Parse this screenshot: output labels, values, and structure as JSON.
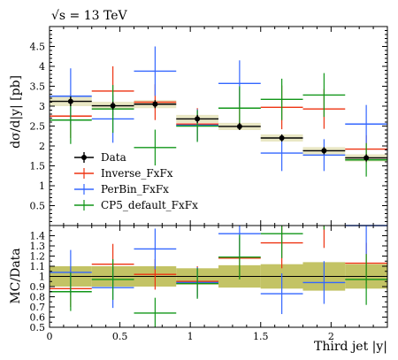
{
  "chart_data": {
    "type": "scatter",
    "energy_label": "√s = 13 TeV",
    "main_plot": {
      "ylabel": "dσ/d|y| [pb]",
      "ylim": [
        0,
        5
      ],
      "yticks": [
        0.5,
        1,
        1.5,
        2,
        2.5,
        3,
        3.5,
        4,
        4.5
      ],
      "ytick_labels": [
        "0.5",
        "1",
        "1.5",
        "2",
        "2.5",
        "3",
        "3.5",
        "4",
        "4.5"
      ],
      "series": [
        {
          "name": "Data",
          "color": "#000000",
          "style": "points",
          "bins": [
            [
              0,
              0.3
            ],
            [
              0.3,
              0.6
            ],
            [
              0.6,
              0.9
            ],
            [
              0.9,
              1.2
            ],
            [
              1.2,
              1.5
            ],
            [
              1.5,
              1.8
            ],
            [
              1.8,
              2.1
            ],
            [
              2.1,
              2.4
            ]
          ],
          "x": [
            0.15,
            0.45,
            0.75,
            1.05,
            1.35,
            1.65,
            1.95,
            2.25
          ],
          "y": [
            3.12,
            3.01,
            3.05,
            2.68,
            2.49,
            2.2,
            1.88,
            1.7
          ],
          "yerr": [
            0.12,
            0.1,
            0.1,
            0.1,
            0.09,
            0.09,
            0.09,
            0.09
          ]
        },
        {
          "name": "Inverse_FxFx",
          "color": "#ee3311",
          "style": "steps",
          "y": [
            2.75,
            3.38,
            3.1,
            2.55,
            2.95,
            2.97,
            2.93,
            1.92
          ],
          "yerr": [
            0.55,
            0.62,
            0.45,
            0.4,
            0.5,
            0.55,
            0.5,
            0.35
          ]
        },
        {
          "name": "PerBin_FxFx",
          "color": "#3366ff",
          "style": "steps",
          "y": [
            3.25,
            2.68,
            3.88,
            2.52,
            3.57,
            1.82,
            1.77,
            2.55
          ],
          "yerr": [
            0.7,
            0.6,
            0.62,
            0.4,
            0.58,
            0.45,
            0.4,
            0.48
          ]
        },
        {
          "name": "CP5_default_FxFx",
          "color": "#109618",
          "style": "steps",
          "y": [
            2.65,
            2.93,
            1.96,
            2.5,
            2.95,
            3.17,
            3.28,
            1.65
          ],
          "yerr": [
            0.6,
            0.6,
            0.45,
            0.4,
            0.55,
            0.52,
            0.55,
            0.42
          ]
        }
      ]
    },
    "ratio_plot": {
      "ylabel": "MC/Data",
      "xlabel": "Third jet |y|",
      "ylim": [
        0.5,
        1.5
      ],
      "yticks": [
        0.5,
        0.6,
        0.7,
        0.8,
        0.9,
        1,
        1.1,
        1.2,
        1.3,
        1.4
      ],
      "ytick_labels": [
        "0.5",
        "0.6",
        "0.7",
        "0.8",
        "0.9",
        "1",
        "1.1",
        "1.2",
        "1.3",
        "1.4"
      ],
      "xlim": [
        0,
        2.4
      ],
      "xticks": [
        0,
        0.5,
        1,
        1.5,
        2
      ],
      "xtick_labels": [
        "0",
        "0.5",
        "1",
        "1.5",
        "2"
      ],
      "data_band": [
        {
          "lo": 0.9,
          "hi": 1.1
        },
        {
          "lo": 0.9,
          "hi": 1.1
        },
        {
          "lo": 0.9,
          "hi": 1.1
        },
        {
          "lo": 0.92,
          "hi": 1.08
        },
        {
          "lo": 0.89,
          "hi": 1.11
        },
        {
          "lo": 0.88,
          "hi": 1.12
        },
        {
          "lo": 0.86,
          "hi": 1.14
        },
        {
          "lo": 0.88,
          "hi": 1.12
        }
      ],
      "series": [
        {
          "name": "Inverse_FxFx",
          "color": "#ee3311",
          "y": [
            0.88,
            1.12,
            1.02,
            0.95,
            1.18,
            1.33,
            1.55,
            1.13
          ],
          "yerr": [
            0.18,
            0.2,
            0.15,
            0.15,
            0.2,
            0.25,
            0.27,
            0.2
          ]
        },
        {
          "name": "PerBin_FxFx",
          "color": "#3366ff",
          "y": [
            1.04,
            0.89,
            1.27,
            0.94,
            1.42,
            0.83,
            0.94,
            1.5
          ],
          "yerr": [
            0.22,
            0.2,
            0.2,
            0.15,
            0.23,
            0.2,
            0.21,
            0.28
          ]
        },
        {
          "name": "CP5_default_FxFx",
          "color": "#109618",
          "y": [
            0.85,
            0.97,
            0.64,
            0.93,
            1.19,
            1.42,
            1.75,
            0.97
          ],
          "yerr": [
            0.19,
            0.2,
            0.15,
            0.15,
            0.22,
            0.24,
            0.29,
            0.25
          ]
        }
      ]
    }
  }
}
